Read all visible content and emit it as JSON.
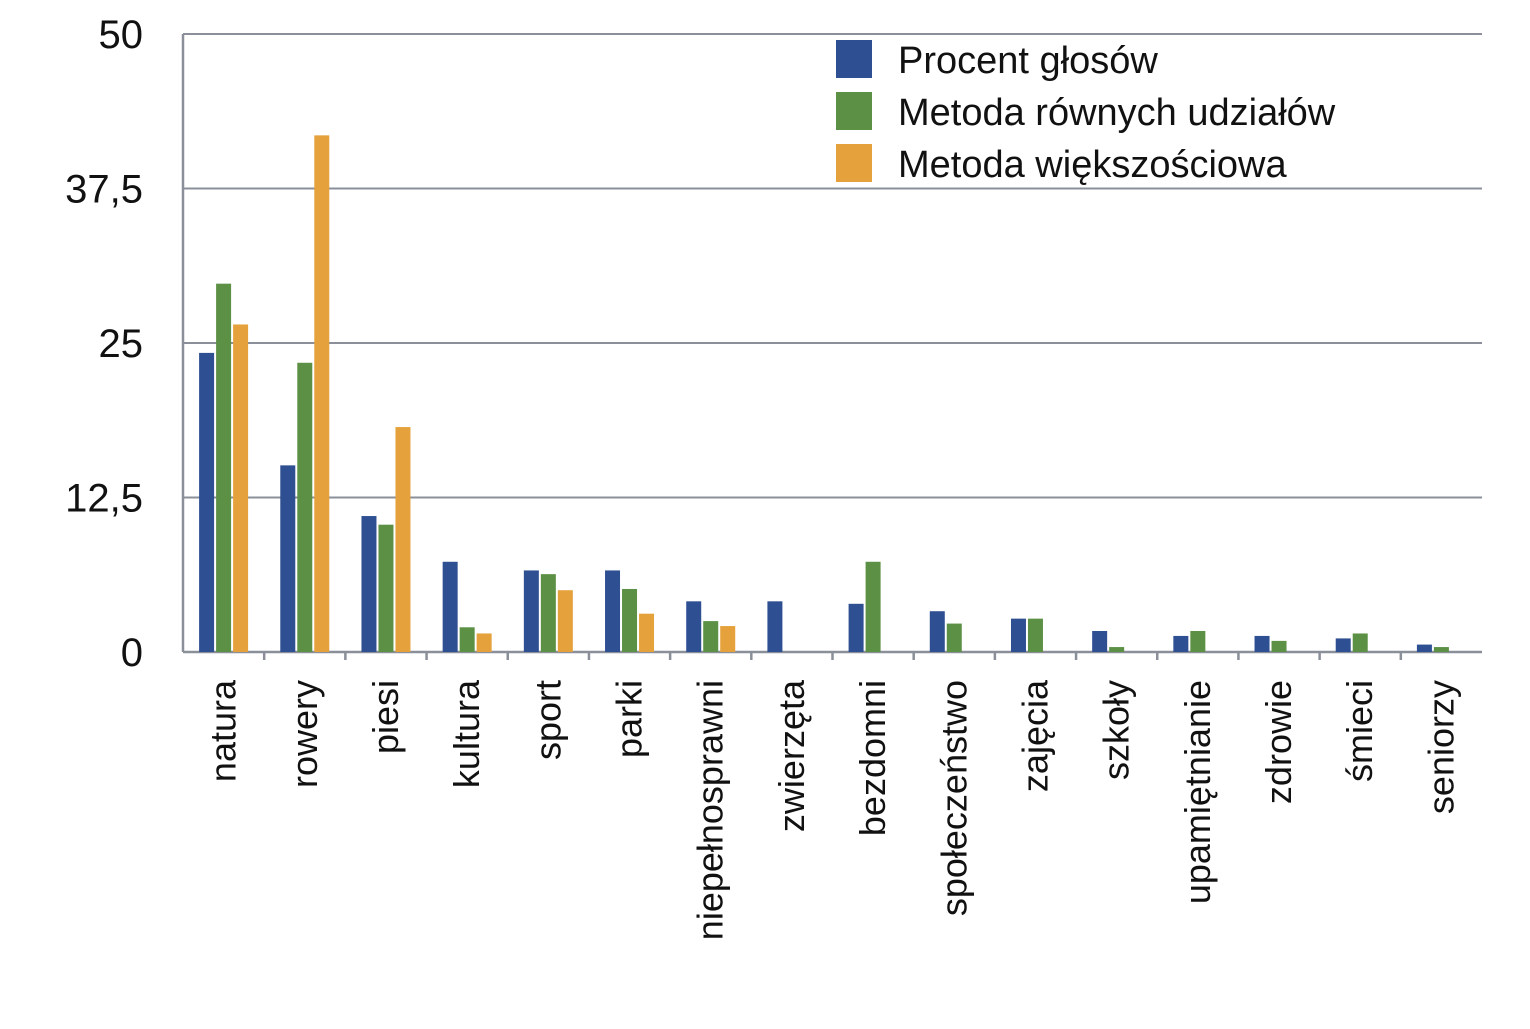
{
  "chart_data": {
    "type": "bar",
    "categories": [
      "natura",
      "rowery",
      "piesi",
      "kultura",
      "sport",
      "parki",
      "niepełnosprawni",
      "zwierzęta",
      "bezdomni",
      "społeczeństwo",
      "zajęcia",
      "szkoły",
      "upamiętnianie",
      "zdrowie",
      "śmieci",
      "seniorzy"
    ],
    "series": [
      {
        "name": "Procent głosów",
        "color": "#2f4f93",
        "values": [
          24.2,
          15.1,
          11.0,
          7.3,
          6.6,
          6.6,
          4.1,
          4.1,
          3.9,
          3.3,
          2.7,
          1.7,
          1.3,
          1.3,
          1.1,
          0.6
        ]
      },
      {
        "name": "Metoda równych udziałów",
        "color": "#5c9145",
        "values": [
          29.8,
          23.4,
          10.3,
          2.0,
          6.3,
          5.1,
          2.5,
          0,
          7.3,
          2.3,
          2.7,
          0.4,
          1.7,
          0.9,
          1.5,
          0.4
        ]
      },
      {
        "name": "Metoda większościowa",
        "color": "#e5a23c",
        "values": [
          26.5,
          41.8,
          18.2,
          1.5,
          5.0,
          3.1,
          2.1,
          0,
          0,
          0,
          0,
          0,
          0,
          0,
          0,
          0
        ]
      }
    ],
    "yticks": [
      "50",
      "37,5",
      "25",
      "12,5",
      "0"
    ],
    "ylim": [
      0,
      50
    ],
    "grid": true,
    "legend": "top-right",
    "xlabel": "",
    "ylabel": ""
  }
}
